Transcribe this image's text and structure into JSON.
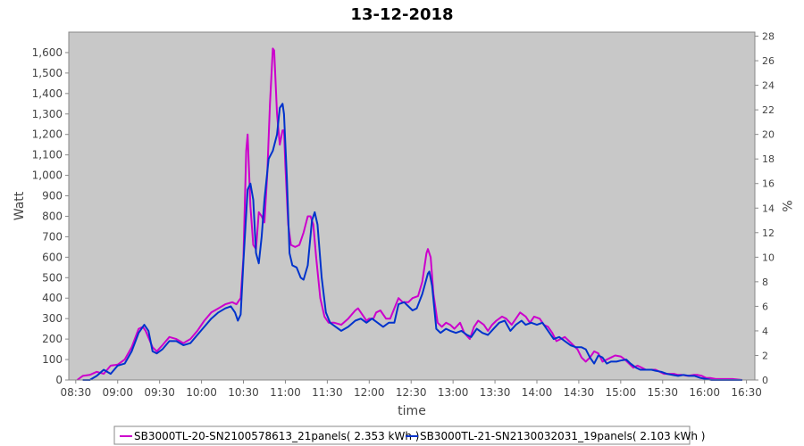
{
  "chart_data": {
    "type": "line",
    "title": "13-12-2018",
    "xlabel": "time",
    "ylabel": "Watt",
    "y2label": "%",
    "ylim": [
      0,
      1700
    ],
    "y2lim": [
      0,
      28.33
    ],
    "xlim": [
      "08:25",
      "16:36"
    ],
    "grid": false,
    "legend_position": "bottom",
    "plot_background": "#c8c8c8",
    "x_ticks": [
      "08:30",
      "09:00",
      "09:30",
      "10:00",
      "10:30",
      "11:00",
      "11:30",
      "12:00",
      "12:30",
      "13:00",
      "13:30",
      "14:00",
      "14:30",
      "15:00",
      "15:30",
      "16:00",
      "16:30"
    ],
    "y_ticks": [
      "0",
      "100",
      "200",
      "300",
      "400",
      "500",
      "600",
      "700",
      "800",
      "900",
      "1,000",
      "1,100",
      "1,200",
      "1,300",
      "1,400",
      "1,500",
      "1,600"
    ],
    "y2_ticks": [
      "0",
      "2",
      "4",
      "6",
      "8",
      "10",
      "12",
      "14",
      "16",
      "18",
      "20",
      "22",
      "24",
      "26",
      "28"
    ],
    "series": [
      {
        "name": "SB3000TL-20-SN2100578613_21panels( 2.353 kWh )",
        "color": "#cc00cc",
        "points": [
          [
            "08:31",
            0
          ],
          [
            "08:35",
            20
          ],
          [
            "08:40",
            25
          ],
          [
            "08:45",
            40
          ],
          [
            "08:50",
            30
          ],
          [
            "08:55",
            70
          ],
          [
            "09:00",
            75
          ],
          [
            "09:05",
            100
          ],
          [
            "09:10",
            160
          ],
          [
            "09:15",
            250
          ],
          [
            "09:18",
            260
          ],
          [
            "09:20",
            240
          ],
          [
            "09:25",
            160
          ],
          [
            "09:28",
            140
          ],
          [
            "09:32",
            170
          ],
          [
            "09:37",
            210
          ],
          [
            "09:42",
            200
          ],
          [
            "09:47",
            180
          ],
          [
            "09:52",
            200
          ],
          [
            "09:57",
            240
          ],
          [
            "10:02",
            290
          ],
          [
            "10:07",
            330
          ],
          [
            "10:12",
            350
          ],
          [
            "10:17",
            370
          ],
          [
            "10:22",
            380
          ],
          [
            "10:25",
            370
          ],
          [
            "10:28",
            400
          ],
          [
            "10:30",
            600
          ],
          [
            "10:32",
            1120
          ],
          [
            "10:33",
            1200
          ],
          [
            "10:35",
            850
          ],
          [
            "10:37",
            660
          ],
          [
            "10:39",
            640
          ],
          [
            "10:41",
            820
          ],
          [
            "10:43",
            800
          ],
          [
            "10:45",
            770
          ],
          [
            "10:47",
            1000
          ],
          [
            "10:49",
            1350
          ],
          [
            "10:51",
            1620
          ],
          [
            "10:52",
            1610
          ],
          [
            "10:54",
            1300
          ],
          [
            "10:56",
            1150
          ],
          [
            "10:58",
            1220
          ],
          [
            "10:59",
            1220
          ],
          [
            "11:00",
            1050
          ],
          [
            "11:02",
            760
          ],
          [
            "11:04",
            660
          ],
          [
            "11:07",
            650
          ],
          [
            "11:10",
            660
          ],
          [
            "11:13",
            720
          ],
          [
            "11:16",
            800
          ],
          [
            "11:18",
            800
          ],
          [
            "11:20",
            760
          ],
          [
            "11:22",
            600
          ],
          [
            "11:25",
            400
          ],
          [
            "11:28",
            310
          ],
          [
            "11:31",
            280
          ],
          [
            "11:35",
            280
          ],
          [
            "11:40",
            270
          ],
          [
            "11:45",
            300
          ],
          [
            "11:50",
            340
          ],
          [
            "11:52",
            350
          ],
          [
            "11:55",
            320
          ],
          [
            "11:58",
            290
          ],
          [
            "12:00",
            300
          ],
          [
            "12:03",
            300
          ],
          [
            "12:05",
            330
          ],
          [
            "12:08",
            340
          ],
          [
            "12:12",
            300
          ],
          [
            "12:15",
            300
          ],
          [
            "12:18",
            350
          ],
          [
            "12:21",
            400
          ],
          [
            "12:24",
            380
          ],
          [
            "12:28",
            380
          ],
          [
            "12:31",
            400
          ],
          [
            "12:35",
            410
          ],
          [
            "12:38",
            480
          ],
          [
            "12:41",
            620
          ],
          [
            "12:42",
            640
          ],
          [
            "12:44",
            600
          ],
          [
            "12:46",
            420
          ],
          [
            "12:49",
            280
          ],
          [
            "12:52",
            260
          ],
          [
            "12:55",
            280
          ],
          [
            "12:58",
            270
          ],
          [
            "13:01",
            250
          ],
          [
            "13:05",
            280
          ],
          [
            "13:08",
            230
          ],
          [
            "13:12",
            200
          ],
          [
            "13:15",
            260
          ],
          [
            "13:18",
            290
          ],
          [
            "13:22",
            270
          ],
          [
            "13:25",
            240
          ],
          [
            "13:28",
            270
          ],
          [
            "13:31",
            290
          ],
          [
            "13:35",
            310
          ],
          [
            "13:38",
            300
          ],
          [
            "13:42",
            270
          ],
          [
            "13:45",
            300
          ],
          [
            "13:48",
            330
          ],
          [
            "13:52",
            310
          ],
          [
            "13:55",
            280
          ],
          [
            "13:58",
            310
          ],
          [
            "14:02",
            300
          ],
          [
            "14:05",
            270
          ],
          [
            "14:08",
            260
          ],
          [
            "14:11",
            230
          ],
          [
            "14:14",
            190
          ],
          [
            "14:17",
            200
          ],
          [
            "14:20",
            210
          ],
          [
            "14:23",
            190
          ],
          [
            "14:26",
            170
          ],
          [
            "14:29",
            150
          ],
          [
            "14:32",
            110
          ],
          [
            "14:35",
            90
          ],
          [
            "14:38",
            110
          ],
          [
            "14:41",
            140
          ],
          [
            "14:44",
            130
          ],
          [
            "14:47",
            90
          ],
          [
            "14:50",
            100
          ],
          [
            "14:53",
            110
          ],
          [
            "14:56",
            120
          ],
          [
            "15:00",
            115
          ],
          [
            "15:03",
            100
          ],
          [
            "15:06",
            80
          ],
          [
            "15:09",
            60
          ],
          [
            "15:12",
            70
          ],
          [
            "15:15",
            60
          ],
          [
            "15:18",
            50
          ],
          [
            "15:22",
            50
          ],
          [
            "15:25",
            50
          ],
          [
            "15:28",
            40
          ],
          [
            "15:31",
            30
          ],
          [
            "15:35",
            30
          ],
          [
            "15:38",
            30
          ],
          [
            "15:41",
            25
          ],
          [
            "15:44",
            25
          ],
          [
            "15:48",
            20
          ],
          [
            "15:52",
            25
          ],
          [
            "15:55",
            25
          ],
          [
            "15:58",
            20
          ],
          [
            "16:01",
            10
          ],
          [
            "16:04",
            10
          ],
          [
            "16:08",
            5
          ],
          [
            "16:12",
            5
          ],
          [
            "16:16",
            5
          ],
          [
            "16:20",
            5
          ],
          [
            "16:27",
            0
          ]
        ]
      },
      {
        "name": "SB3000TL-21-SN2130032031_19panels( 2.103 kWh )",
        "color": "#0033cc",
        "points": [
          [
            "08:35",
            0
          ],
          [
            "08:40",
            0
          ],
          [
            "08:45",
            20
          ],
          [
            "08:50",
            50
          ],
          [
            "08:55",
            30
          ],
          [
            "09:00",
            70
          ],
          [
            "09:05",
            80
          ],
          [
            "09:10",
            140
          ],
          [
            "09:15",
            230
          ],
          [
            "09:19",
            270
          ],
          [
            "09:22",
            240
          ],
          [
            "09:25",
            140
          ],
          [
            "09:28",
            130
          ],
          [
            "09:32",
            150
          ],
          [
            "09:37",
            190
          ],
          [
            "09:42",
            190
          ],
          [
            "09:47",
            170
          ],
          [
            "09:52",
            180
          ],
          [
            "09:57",
            220
          ],
          [
            "10:02",
            260
          ],
          [
            "10:07",
            300
          ],
          [
            "10:12",
            330
          ],
          [
            "10:17",
            350
          ],
          [
            "10:21",
            360
          ],
          [
            "10:24",
            330
          ],
          [
            "10:26",
            290
          ],
          [
            "10:28",
            320
          ],
          [
            "10:30",
            580
          ],
          [
            "10:33",
            930
          ],
          [
            "10:35",
            960
          ],
          [
            "10:37",
            880
          ],
          [
            "10:39",
            620
          ],
          [
            "10:41",
            570
          ],
          [
            "10:43",
            700
          ],
          [
            "10:45",
            880
          ],
          [
            "10:48",
            1080
          ],
          [
            "10:51",
            1120
          ],
          [
            "10:54",
            1200
          ],
          [
            "10:56",
            1330
          ],
          [
            "10:58",
            1350
          ],
          [
            "10:59",
            1300
          ],
          [
            "11:01",
            1000
          ],
          [
            "11:03",
            620
          ],
          [
            "11:05",
            560
          ],
          [
            "11:08",
            550
          ],
          [
            "11:11",
            500
          ],
          [
            "11:13",
            490
          ],
          [
            "11:16",
            560
          ],
          [
            "11:19",
            780
          ],
          [
            "11:21",
            820
          ],
          [
            "11:23",
            760
          ],
          [
            "11:26",
            500
          ],
          [
            "11:29",
            330
          ],
          [
            "11:32",
            280
          ],
          [
            "11:36",
            260
          ],
          [
            "11:40",
            240
          ],
          [
            "11:45",
            260
          ],
          [
            "11:50",
            290
          ],
          [
            "11:54",
            300
          ],
          [
            "11:58",
            280
          ],
          [
            "12:02",
            300
          ],
          [
            "12:06",
            280
          ],
          [
            "12:10",
            260
          ],
          [
            "12:14",
            280
          ],
          [
            "12:18",
            280
          ],
          [
            "12:21",
            370
          ],
          [
            "12:25",
            380
          ],
          [
            "12:28",
            360
          ],
          [
            "12:31",
            340
          ],
          [
            "12:34",
            350
          ],
          [
            "12:38",
            420
          ],
          [
            "12:42",
            520
          ],
          [
            "12:43",
            530
          ],
          [
            "12:45",
            460
          ],
          [
            "12:48",
            250
          ],
          [
            "12:51",
            230
          ],
          [
            "12:55",
            250
          ],
          [
            "12:58",
            240
          ],
          [
            "13:02",
            230
          ],
          [
            "13:06",
            240
          ],
          [
            "13:10",
            220
          ],
          [
            "13:13",
            210
          ],
          [
            "13:17",
            250
          ],
          [
            "13:21",
            230
          ],
          [
            "13:25",
            220
          ],
          [
            "13:29",
            250
          ],
          [
            "13:33",
            280
          ],
          [
            "13:37",
            290
          ],
          [
            "13:41",
            240
          ],
          [
            "13:45",
            270
          ],
          [
            "13:49",
            290
          ],
          [
            "13:52",
            270
          ],
          [
            "13:56",
            280
          ],
          [
            "14:00",
            270
          ],
          [
            "14:04",
            280
          ],
          [
            "14:08",
            240
          ],
          [
            "14:12",
            200
          ],
          [
            "14:16",
            210
          ],
          [
            "14:20",
            190
          ],
          [
            "14:24",
            170
          ],
          [
            "14:28",
            160
          ],
          [
            "14:32",
            160
          ],
          [
            "14:35",
            150
          ],
          [
            "14:38",
            110
          ],
          [
            "14:41",
            80
          ],
          [
            "14:44",
            120
          ],
          [
            "14:47",
            110
          ],
          [
            "14:50",
            80
          ],
          [
            "14:53",
            90
          ],
          [
            "14:57",
            90
          ],
          [
            "15:00",
            95
          ],
          [
            "15:04",
            100
          ],
          [
            "15:07",
            80
          ],
          [
            "15:11",
            60
          ],
          [
            "15:14",
            50
          ],
          [
            "15:18",
            50
          ],
          [
            "15:22",
            50
          ],
          [
            "15:25",
            45
          ],
          [
            "15:29",
            40
          ],
          [
            "15:33",
            30
          ],
          [
            "15:37",
            25
          ],
          [
            "15:41",
            20
          ],
          [
            "15:45",
            25
          ],
          [
            "15:49",
            20
          ],
          [
            "15:53",
            20
          ],
          [
            "15:57",
            10
          ],
          [
            "16:01",
            5
          ],
          [
            "16:05",
            0
          ],
          [
            "16:10",
            0
          ],
          [
            "16:20",
            0
          ],
          [
            "16:27",
            0
          ]
        ]
      }
    ]
  }
}
